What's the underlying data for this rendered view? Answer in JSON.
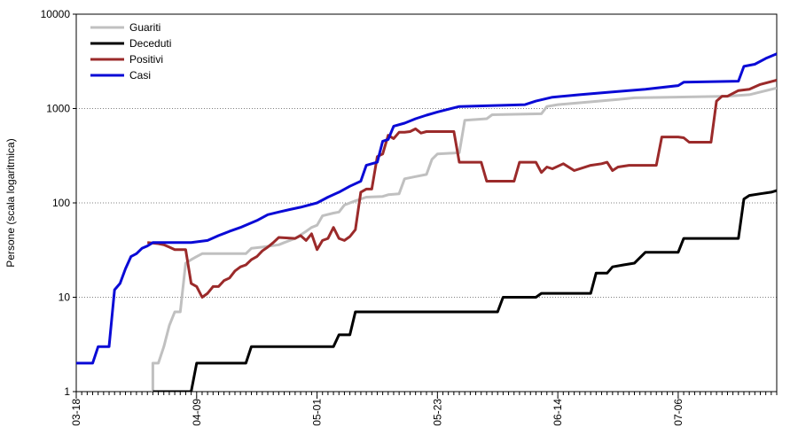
{
  "chart_data": {
    "type": "line",
    "title": "",
    "ylabel": "Persone (scala logaritmica)",
    "xlabel": "",
    "yscale": "log",
    "ylim": [
      1,
      10000
    ],
    "xlim": [
      "2020-03-18",
      "2020-07-24"
    ],
    "y_ticks": [
      {
        "value": 1,
        "label": "1"
      },
      {
        "value": 10,
        "label": "10"
      },
      {
        "value": 100,
        "label": "100"
      },
      {
        "value": 1000,
        "label": "1000"
      },
      {
        "value": 10000,
        "label": "10000"
      }
    ],
    "x_ticks": [
      {
        "value": "2020-03-18",
        "label": "03-18"
      },
      {
        "value": "2020-04-09",
        "label": "04-09"
      },
      {
        "value": "2020-05-01",
        "label": "05-01"
      },
      {
        "value": "2020-05-23",
        "label": "05-23"
      },
      {
        "value": "2020-06-14",
        "label": "06-14"
      },
      {
        "value": "2020-07-06",
        "label": "07-06"
      }
    ],
    "grid": {
      "y": true,
      "x": false
    },
    "legend": {
      "position": "top-left"
    },
    "series": [
      {
        "name": "Guariti",
        "color": "#c0c0c0",
        "points": [
          [
            "2020-04-01",
            1
          ],
          [
            "2020-04-01",
            2
          ],
          [
            "2020-04-02",
            2
          ],
          [
            "2020-04-03",
            3
          ],
          [
            "2020-04-04",
            5
          ],
          [
            "2020-04-05",
            7
          ],
          [
            "2020-04-06",
            7
          ],
          [
            "2020-04-07",
            23
          ],
          [
            "2020-04-08",
            25
          ],
          [
            "2020-04-09",
            27
          ],
          [
            "2020-04-10",
            29
          ],
          [
            "2020-04-18",
            29
          ],
          [
            "2020-04-19",
            33
          ],
          [
            "2020-04-21",
            34
          ],
          [
            "2020-04-24",
            36
          ],
          [
            "2020-04-25",
            38
          ],
          [
            "2020-04-27",
            42
          ],
          [
            "2020-04-29",
            50
          ],
          [
            "2020-04-30",
            55
          ],
          [
            "2020-05-01",
            58
          ],
          [
            "2020-05-02",
            73
          ],
          [
            "2020-05-04",
            78
          ],
          [
            "2020-05-05",
            80
          ],
          [
            "2020-05-06",
            95
          ],
          [
            "2020-05-08",
            105
          ],
          [
            "2020-05-10",
            115
          ],
          [
            "2020-05-13",
            117
          ],
          [
            "2020-05-14",
            122
          ],
          [
            "2020-05-16",
            125
          ],
          [
            "2020-05-17",
            180
          ],
          [
            "2020-05-19",
            190
          ],
          [
            "2020-05-21",
            200
          ],
          [
            "2020-05-22",
            290
          ],
          [
            "2020-05-23",
            330
          ],
          [
            "2020-05-27",
            340
          ],
          [
            "2020-05-28",
            750
          ],
          [
            "2020-06-01",
            780
          ],
          [
            "2020-06-02",
            860
          ],
          [
            "2020-06-11",
            880
          ],
          [
            "2020-06-12",
            1050
          ],
          [
            "2020-06-14",
            1100
          ],
          [
            "2020-06-18",
            1150
          ],
          [
            "2020-06-25",
            1250
          ],
          [
            "2020-06-28",
            1300
          ],
          [
            "2020-07-15",
            1350
          ],
          [
            "2020-07-19",
            1400
          ],
          [
            "2020-07-24",
            1650
          ]
        ]
      },
      {
        "name": "Deceduti",
        "color": "#000000",
        "points": [
          [
            "2020-04-01",
            1
          ],
          [
            "2020-04-08",
            1
          ],
          [
            "2020-04-09",
            2
          ],
          [
            "2020-04-18",
            2
          ],
          [
            "2020-04-19",
            3
          ],
          [
            "2020-05-04",
            3
          ],
          [
            "2020-05-05",
            4
          ],
          [
            "2020-05-07",
            4
          ],
          [
            "2020-05-08",
            7
          ],
          [
            "2020-06-03",
            7
          ],
          [
            "2020-06-04",
            10
          ],
          [
            "2020-06-10",
            10
          ],
          [
            "2020-06-11",
            11
          ],
          [
            "2020-06-20",
            11
          ],
          [
            "2020-06-21",
            18
          ],
          [
            "2020-06-23",
            18
          ],
          [
            "2020-06-24",
            21
          ],
          [
            "2020-06-26",
            22
          ],
          [
            "2020-06-28",
            23
          ],
          [
            "2020-06-30",
            30
          ],
          [
            "2020-07-06",
            30
          ],
          [
            "2020-07-07",
            42
          ],
          [
            "2020-07-17",
            42
          ],
          [
            "2020-07-18",
            110
          ],
          [
            "2020-07-19",
            120
          ],
          [
            "2020-07-21",
            125
          ],
          [
            "2020-07-23",
            130
          ],
          [
            "2020-07-24",
            135
          ]
        ]
      },
      {
        "name": "Positivi",
        "color": "#9b2a2a",
        "points": [
          [
            "2020-03-31",
            38
          ],
          [
            "2020-04-02",
            37
          ],
          [
            "2020-04-03",
            36
          ],
          [
            "2020-04-04",
            34
          ],
          [
            "2020-04-05",
            32
          ],
          [
            "2020-04-07",
            32
          ],
          [
            "2020-04-08",
            14
          ],
          [
            "2020-04-09",
            13
          ],
          [
            "2020-04-10",
            10
          ],
          [
            "2020-04-11",
            11
          ],
          [
            "2020-04-12",
            13
          ],
          [
            "2020-04-13",
            13
          ],
          [
            "2020-04-14",
            15
          ],
          [
            "2020-04-15",
            16
          ],
          [
            "2020-04-16",
            19
          ],
          [
            "2020-04-17",
            21
          ],
          [
            "2020-04-18",
            22
          ],
          [
            "2020-04-19",
            25
          ],
          [
            "2020-04-20",
            27
          ],
          [
            "2020-04-21",
            31
          ],
          [
            "2020-04-22",
            34
          ],
          [
            "2020-04-23",
            38
          ],
          [
            "2020-04-24",
            43
          ],
          [
            "2020-04-27",
            42
          ],
          [
            "2020-04-28",
            45
          ],
          [
            "2020-04-29",
            40
          ],
          [
            "2020-04-30",
            47
          ],
          [
            "2020-05-01",
            32
          ],
          [
            "2020-05-02",
            40
          ],
          [
            "2020-05-03",
            42
          ],
          [
            "2020-05-04",
            55
          ],
          [
            "2020-05-05",
            42
          ],
          [
            "2020-05-06",
            40
          ],
          [
            "2020-05-07",
            44
          ],
          [
            "2020-05-08",
            52
          ],
          [
            "2020-05-09",
            130
          ],
          [
            "2020-05-10",
            140
          ],
          [
            "2020-05-11",
            140
          ],
          [
            "2020-05-12",
            310
          ],
          [
            "2020-05-13",
            330
          ],
          [
            "2020-05-14",
            520
          ],
          [
            "2020-05-15",
            480
          ],
          [
            "2020-05-16",
            560
          ],
          [
            "2020-05-17",
            560
          ],
          [
            "2020-05-18",
            570
          ],
          [
            "2020-05-19",
            610
          ],
          [
            "2020-05-20",
            550
          ],
          [
            "2020-05-21",
            570
          ],
          [
            "2020-05-26",
            570
          ],
          [
            "2020-05-27",
            270
          ],
          [
            "2020-05-31",
            270
          ],
          [
            "2020-06-01",
            170
          ],
          [
            "2020-06-06",
            170
          ],
          [
            "2020-06-07",
            270
          ],
          [
            "2020-06-10",
            270
          ],
          [
            "2020-06-11",
            210
          ],
          [
            "2020-06-12",
            240
          ],
          [
            "2020-06-13",
            230
          ],
          [
            "2020-06-15",
            260
          ],
          [
            "2020-06-17",
            220
          ],
          [
            "2020-06-20",
            250
          ],
          [
            "2020-06-22",
            260
          ],
          [
            "2020-06-23",
            270
          ],
          [
            "2020-06-24",
            220
          ],
          [
            "2020-06-25",
            240
          ],
          [
            "2020-06-27",
            250
          ],
          [
            "2020-07-02",
            250
          ],
          [
            "2020-07-03",
            500
          ],
          [
            "2020-07-06",
            500
          ],
          [
            "2020-07-07",
            490
          ],
          [
            "2020-07-08",
            440
          ],
          [
            "2020-07-12",
            440
          ],
          [
            "2020-07-13",
            1200
          ],
          [
            "2020-07-14",
            1350
          ],
          [
            "2020-07-15",
            1350
          ],
          [
            "2020-07-17",
            1550
          ],
          [
            "2020-07-19",
            1600
          ],
          [
            "2020-07-21",
            1800
          ],
          [
            "2020-07-24",
            2000
          ]
        ]
      },
      {
        "name": "Casi",
        "color": "#0a0ad6",
        "points": [
          [
            "2020-03-18",
            2
          ],
          [
            "2020-03-21",
            2
          ],
          [
            "2020-03-22",
            3
          ],
          [
            "2020-03-23",
            3
          ],
          [
            "2020-03-24",
            3
          ],
          [
            "2020-03-25",
            12
          ],
          [
            "2020-03-26",
            14
          ],
          [
            "2020-03-27",
            20
          ],
          [
            "2020-03-28",
            27
          ],
          [
            "2020-03-29",
            29
          ],
          [
            "2020-03-30",
            33
          ],
          [
            "2020-03-31",
            35
          ],
          [
            "2020-04-01",
            38
          ],
          [
            "2020-04-08",
            38
          ],
          [
            "2020-04-11",
            40
          ],
          [
            "2020-04-13",
            45
          ],
          [
            "2020-04-15",
            50
          ],
          [
            "2020-04-17",
            55
          ],
          [
            "2020-04-20",
            65
          ],
          [
            "2020-04-22",
            75
          ],
          [
            "2020-04-24",
            80
          ],
          [
            "2020-04-26",
            85
          ],
          [
            "2020-04-28",
            90
          ],
          [
            "2020-05-01",
            100
          ],
          [
            "2020-05-03",
            115
          ],
          [
            "2020-05-05",
            130
          ],
          [
            "2020-05-07",
            150
          ],
          [
            "2020-05-09",
            170
          ],
          [
            "2020-05-10",
            250
          ],
          [
            "2020-05-12",
            270
          ],
          [
            "2020-05-13",
            450
          ],
          [
            "2020-05-14",
            470
          ],
          [
            "2020-05-15",
            650
          ],
          [
            "2020-05-17",
            700
          ],
          [
            "2020-05-19",
            780
          ],
          [
            "2020-05-21",
            850
          ],
          [
            "2020-05-23",
            920
          ],
          [
            "2020-05-27",
            1050
          ],
          [
            "2020-06-08",
            1100
          ],
          [
            "2020-06-10",
            1200
          ],
          [
            "2020-06-13",
            1320
          ],
          [
            "2020-06-18",
            1400
          ],
          [
            "2020-06-24",
            1500
          ],
          [
            "2020-06-30",
            1600
          ],
          [
            "2020-07-06",
            1750
          ],
          [
            "2020-07-07",
            1900
          ],
          [
            "2020-07-17",
            1950
          ],
          [
            "2020-07-18",
            2800
          ],
          [
            "2020-07-20",
            2950
          ],
          [
            "2020-07-22",
            3400
          ],
          [
            "2020-07-24",
            3800
          ]
        ]
      }
    ]
  }
}
